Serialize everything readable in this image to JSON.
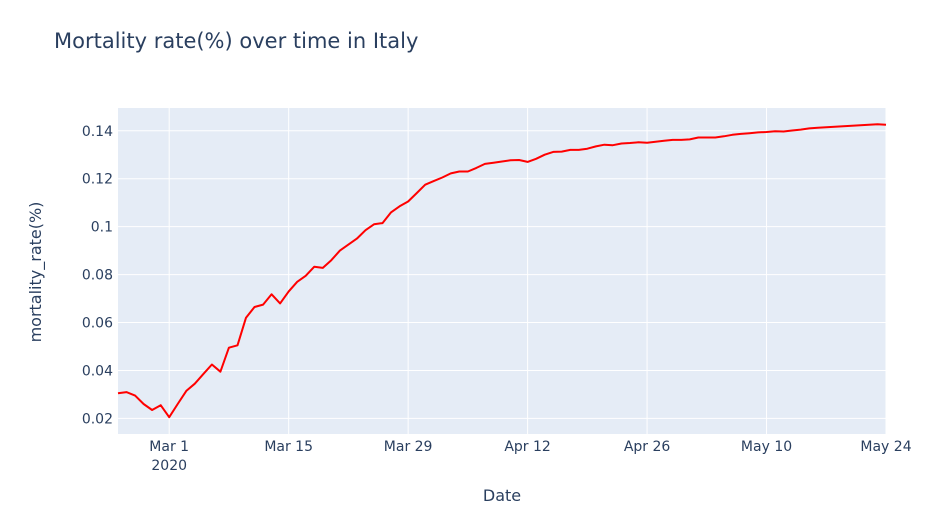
{
  "chart_data": {
    "type": "line",
    "title": "Mortality rate(%) over time in Italy",
    "xlabel": "Date",
    "ylabel": "mortality_rate(%)",
    "x_range": [
      "2020-02-24",
      "2020-05-24"
    ],
    "ylim": [
      0.0135,
      0.1495
    ],
    "grid": true,
    "legend": "none",
    "x_ticks": [
      {
        "date": "2020-03-01",
        "label": "Mar 1",
        "sublabel": "2020"
      },
      {
        "date": "2020-03-15",
        "label": "Mar 15",
        "sublabel": ""
      },
      {
        "date": "2020-03-29",
        "label": "Mar 29",
        "sublabel": ""
      },
      {
        "date": "2020-04-12",
        "label": "Apr 12",
        "sublabel": ""
      },
      {
        "date": "2020-04-26",
        "label": "Apr 26",
        "sublabel": ""
      },
      {
        "date": "2020-05-10",
        "label": "May 10",
        "sublabel": ""
      },
      {
        "date": "2020-05-24",
        "label": "May 24",
        "sublabel": ""
      }
    ],
    "y_ticks": [
      {
        "value": 0.02,
        "label": "0.02"
      },
      {
        "value": 0.04,
        "label": "0.04"
      },
      {
        "value": 0.06,
        "label": "0.06"
      },
      {
        "value": 0.08,
        "label": "0.08"
      },
      {
        "value": 0.1,
        "label": "0.1"
      },
      {
        "value": 0.12,
        "label": "0.12"
      },
      {
        "value": 0.14,
        "label": "0.14"
      }
    ],
    "colors": {
      "line": "#ff0000",
      "plot_bg": "#e5ecf6",
      "grid": "#ffffff",
      "text": "#2a3f5f"
    },
    "series": [
      {
        "x": [
          "2020-02-24",
          "2020-02-25",
          "2020-02-26",
          "2020-02-27",
          "2020-02-28",
          "2020-02-29",
          "2020-03-01",
          "2020-03-02",
          "2020-03-03",
          "2020-03-04",
          "2020-03-05",
          "2020-03-06",
          "2020-03-07",
          "2020-03-08",
          "2020-03-09",
          "2020-03-10",
          "2020-03-11",
          "2020-03-12",
          "2020-03-13",
          "2020-03-14",
          "2020-03-15",
          "2020-03-16",
          "2020-03-17",
          "2020-03-18",
          "2020-03-19",
          "2020-03-20",
          "2020-03-21",
          "2020-03-22",
          "2020-03-23",
          "2020-03-24",
          "2020-03-25",
          "2020-03-26",
          "2020-03-27",
          "2020-03-28",
          "2020-03-29",
          "2020-03-30",
          "2020-03-31",
          "2020-04-01",
          "2020-04-02",
          "2020-04-03",
          "2020-04-04",
          "2020-04-05",
          "2020-04-06",
          "2020-04-07",
          "2020-04-08",
          "2020-04-09",
          "2020-04-10",
          "2020-04-11",
          "2020-04-12",
          "2020-04-13",
          "2020-04-14",
          "2020-04-15",
          "2020-04-16",
          "2020-04-17",
          "2020-04-18",
          "2020-04-19",
          "2020-04-20",
          "2020-04-21",
          "2020-04-22",
          "2020-04-23",
          "2020-04-24",
          "2020-04-25",
          "2020-04-26",
          "2020-04-27",
          "2020-04-28",
          "2020-04-29",
          "2020-04-30",
          "2020-05-01",
          "2020-05-02",
          "2020-05-03",
          "2020-05-04",
          "2020-05-05",
          "2020-05-06",
          "2020-05-07",
          "2020-05-08",
          "2020-05-09",
          "2020-05-10",
          "2020-05-11",
          "2020-05-12",
          "2020-05-13",
          "2020-05-14",
          "2020-05-15",
          "2020-05-16",
          "2020-05-17",
          "2020-05-18",
          "2020-05-19",
          "2020-05-20",
          "2020-05-21",
          "2020-05-22",
          "2020-05-23",
          "2020-05-24"
        ],
        "y": [
          0.0305,
          0.031,
          0.0295,
          0.026,
          0.0235,
          0.0255,
          0.0205,
          0.026,
          0.0315,
          0.0345,
          0.0385,
          0.0425,
          0.0395,
          0.0495,
          0.0505,
          0.062,
          0.0665,
          0.0675,
          0.0718,
          0.068,
          0.073,
          0.077,
          0.0795,
          0.0833,
          0.0828,
          0.086,
          0.09,
          0.0925,
          0.095,
          0.0985,
          0.101,
          0.1015,
          0.106,
          0.1085,
          0.1105,
          0.114,
          0.1175,
          0.119,
          0.1205,
          0.1222,
          0.123,
          0.123,
          0.1245,
          0.1262,
          0.1267,
          0.1272,
          0.1277,
          0.1278,
          0.127,
          0.1283,
          0.13,
          0.1312,
          0.1313,
          0.132,
          0.132,
          0.1325,
          0.1335,
          0.1342,
          0.134,
          0.1347,
          0.1349,
          0.1352,
          0.135,
          0.1354,
          0.1358,
          0.1362,
          0.1362,
          0.1364,
          0.1372,
          0.1372,
          0.1372,
          0.1377,
          0.1383,
          0.1387,
          0.139,
          0.1393,
          0.1395,
          0.1398,
          0.1397,
          0.1401,
          0.1405,
          0.141,
          0.1413,
          0.1415,
          0.1417,
          0.1419,
          0.1421,
          0.1423,
          0.1425,
          0.1427,
          0.1425
        ]
      }
    ]
  }
}
